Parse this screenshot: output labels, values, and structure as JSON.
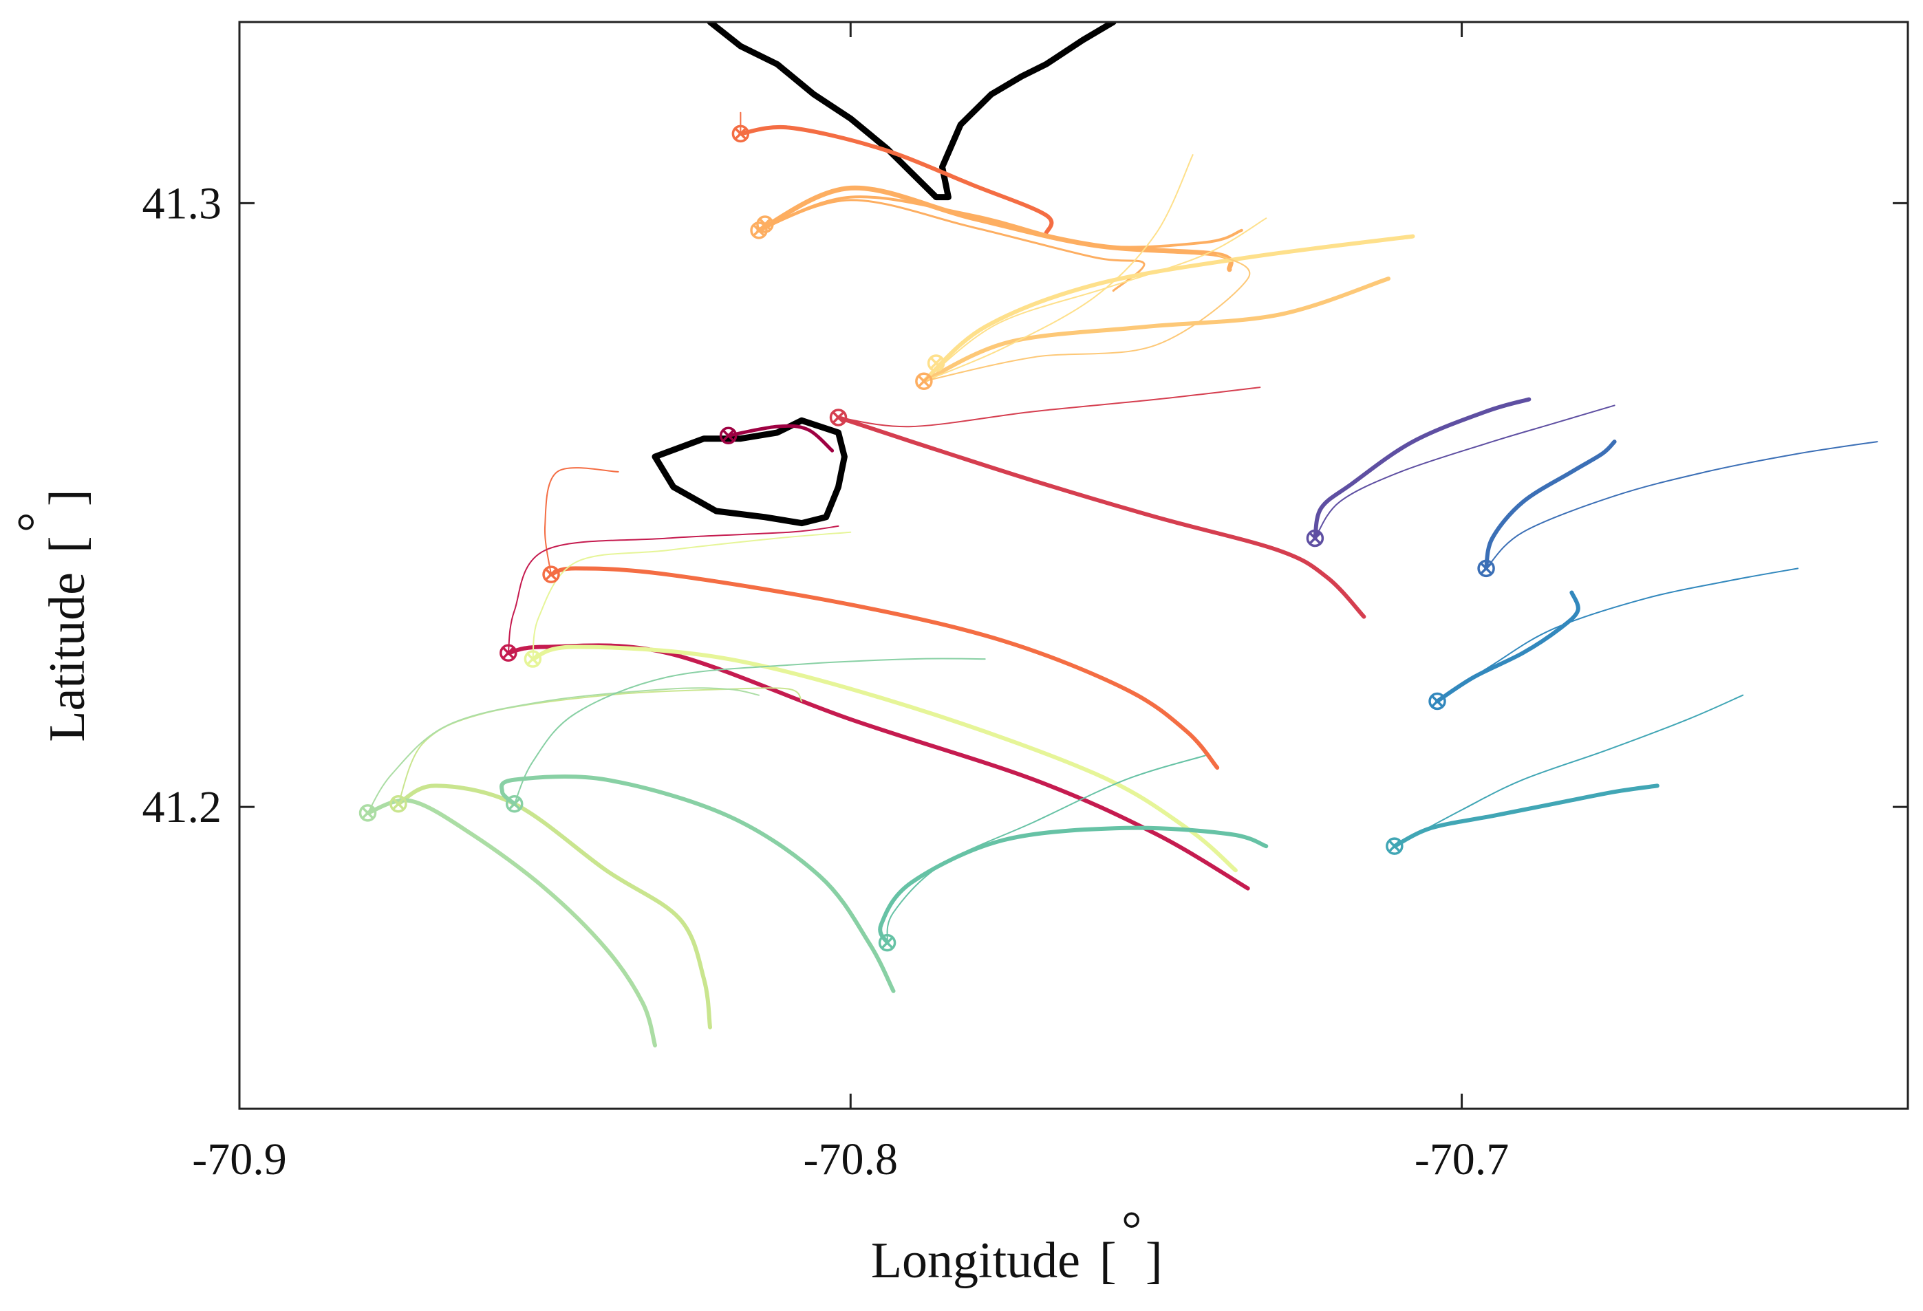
{
  "chart_data": {
    "type": "line",
    "title": "",
    "xlabel": "Longitude [ ]",
    "ylabel": "Latitude [ ]",
    "xlabel_text": "Longitude",
    "ylabel_text": "Latitude",
    "unit_symbol": "°",
    "xlim": [
      -70.9,
      -70.627
    ],
    "ylim": [
      41.15,
      41.33
    ],
    "x_ticks": [
      -70.9,
      -70.8,
      -70.7
    ],
    "x_tick_labels": [
      "-70.9",
      "-70.8",
      "-70.7"
    ],
    "y_ticks": [
      41.2,
      41.3
    ],
    "y_tick_labels": [
      "41.2",
      "41.3"
    ],
    "grid": false,
    "legend": "none",
    "start_marker": "circled-x",
    "coastlines": [
      {
        "name": "coastline-north",
        "color": "#000000",
        "x": [
          -70.823,
          -70.818,
          -70.812,
          -70.806,
          -70.8,
          -70.794,
          -70.79,
          -70.786,
          -70.784,
          -70.785,
          -70.782,
          -70.777,
          -70.772,
          -70.768,
          -70.762,
          -70.757
        ],
        "y": [
          41.33,
          41.326,
          41.323,
          41.318,
          41.314,
          41.309,
          41.305,
          41.301,
          41.301,
          41.306,
          41.313,
          41.318,
          41.321,
          41.323,
          41.327,
          41.33
        ]
      },
      {
        "name": "island",
        "color": "#000000",
        "x": [
          -70.832,
          -70.824,
          -70.818,
          -70.812,
          -70.808,
          -70.802,
          -70.801,
          -70.802,
          -70.804,
          -70.808,
          -70.814,
          -70.822,
          -70.829,
          -70.832
        ],
        "y": [
          41.258,
          41.261,
          41.261,
          41.262,
          41.264,
          41.262,
          41.258,
          41.253,
          41.248,
          41.247,
          41.248,
          41.249,
          41.253,
          41.258
        ]
      }
    ],
    "series": [
      {
        "color": "#F46D43",
        "lw": 6,
        "x": [
          -70.818,
          -70.81,
          -70.795,
          -70.78,
          -70.768,
          -70.768
        ],
        "y": [
          41.3115,
          41.3125,
          41.309,
          41.303,
          41.298,
          41.295
        ]
      },
      {
        "color": "#F46D43",
        "lw": 2,
        "x": [
          -70.818,
          -70.818
        ],
        "y": [
          41.3115,
          41.315
        ]
      },
      {
        "color": "#FDAE61",
        "lw": 7,
        "x": [
          -70.815,
          -70.8,
          -70.78,
          -70.76,
          -70.74,
          -70.738
        ],
        "y": [
          41.2955,
          41.3025,
          41.2975,
          41.293,
          41.2915,
          41.289
        ]
      },
      {
        "color": "#FDAE61",
        "lw": 4,
        "x": [
          -70.815,
          -70.8,
          -70.78,
          -70.76,
          -70.742,
          -70.736
        ],
        "y": [
          41.2955,
          41.301,
          41.298,
          41.293,
          41.2935,
          41.2955
        ]
      },
      {
        "color": "#FDAE61",
        "lw": 3,
        "x": [
          -70.815,
          -70.8,
          -70.78,
          -70.76,
          -70.752,
          -70.757
        ],
        "y": [
          41.2955,
          41.3005,
          41.296,
          41.291,
          41.29,
          41.2855
        ]
      },
      {
        "color": "#FEE08B",
        "lw": 6,
        "x": [
          -70.788,
          -70.778,
          -70.76,
          -70.735,
          -70.708
        ],
        "y": [
          41.2705,
          41.2795,
          41.2865,
          41.291,
          41.2945
        ]
      },
      {
        "color": "#FDC877",
        "lw": 6,
        "x": [
          -70.788,
          -70.774,
          -70.752,
          -70.73,
          -70.712
        ],
        "y": [
          41.2705,
          41.277,
          41.2795,
          41.2815,
          41.2875
        ]
      },
      {
        "color": "#FEE08B",
        "lw": 2,
        "x": [
          -70.788,
          -70.776,
          -70.758,
          -70.742,
          -70.732
        ],
        "y": [
          41.2705,
          41.28,
          41.286,
          41.2915,
          41.2975
        ]
      },
      {
        "color": "#FEE08B",
        "lw": 2,
        "x": [
          -70.788,
          -70.775,
          -70.76,
          -70.75,
          -70.744
        ],
        "y": [
          41.2705,
          41.276,
          41.2845,
          41.295,
          41.308
        ]
      },
      {
        "color": "#FDC877",
        "lw": 2,
        "x": [
          -70.788,
          -70.77,
          -70.75,
          -70.735,
          -70.74
        ],
        "y": [
          41.2705,
          41.2745,
          41.2765,
          41.2875,
          41.2915
        ]
      },
      {
        "color": "#D53E4F",
        "lw": 6,
        "x": [
          -70.802,
          -70.79,
          -70.77,
          -70.75,
          -70.73,
          -70.722,
          -70.716
        ],
        "y": [
          41.2645,
          41.2605,
          41.254,
          41.248,
          41.2425,
          41.238,
          41.2315
        ]
      },
      {
        "color": "#D53E4F",
        "lw": 2,
        "x": [
          -70.802,
          -70.79,
          -70.77,
          -70.75,
          -70.733
        ],
        "y": [
          41.2645,
          41.263,
          41.2655,
          41.2675,
          41.2695
        ]
      },
      {
        "color": "#9E0142",
        "lw": 5,
        "x": [
          -70.82,
          -70.812,
          -70.807,
          -70.803
        ],
        "y": [
          41.2615,
          41.263,
          41.2625,
          41.259
        ]
      },
      {
        "color": "#F46D43",
        "lw": 6,
        "x": [
          -70.849,
          -70.845,
          -70.83,
          -70.8,
          -70.775,
          -70.755,
          -70.745,
          -70.74
        ],
        "y": [
          41.2385,
          41.2395,
          41.2385,
          41.2335,
          41.2275,
          41.2195,
          41.2125,
          41.2065
        ]
      },
      {
        "color": "#F46D43",
        "lw": 2,
        "x": [
          -70.849,
          -70.85,
          -70.848,
          -70.838
        ],
        "y": [
          41.2385,
          41.2465,
          41.2555,
          41.2555
        ]
      },
      {
        "color": "#C51B4F",
        "lw": 6,
        "x": [
          -70.856,
          -70.85,
          -70.83,
          -70.8,
          -70.77,
          -70.75,
          -70.735
        ],
        "y": [
          41.2255,
          41.2265,
          41.2255,
          41.2145,
          41.2045,
          41.1955,
          41.1865
        ]
      },
      {
        "color": "#C51B4F",
        "lw": 2,
        "x": [
          -70.856,
          -70.855,
          -70.85,
          -70.83,
          -70.81,
          -70.802
        ],
        "y": [
          41.2255,
          41.2325,
          41.2425,
          41.2445,
          41.2455,
          41.2465
        ]
      },
      {
        "color": "#E6F598",
        "lw": 6,
        "x": [
          -70.852,
          -70.845,
          -70.82,
          -70.79,
          -70.76,
          -70.745,
          -70.737
        ],
        "y": [
          41.2245,
          41.2265,
          41.2245,
          41.2165,
          41.2055,
          41.1965,
          41.1895
        ]
      },
      {
        "color": "#E6F598",
        "lw": 2,
        "x": [
          -70.852,
          -70.851,
          -70.845,
          -70.83,
          -70.812,
          -70.8
        ],
        "y": [
          41.2245,
          41.2315,
          41.2405,
          41.2425,
          41.2445,
          41.2455
        ]
      },
      {
        "color": "#C9E58E",
        "lw": 6,
        "x": [
          -70.874,
          -70.868,
          -70.855,
          -70.84,
          -70.828,
          -70.824,
          -70.823
        ],
        "y": [
          41.2005,
          41.2035,
          41.2005,
          41.1895,
          41.1815,
          41.1715,
          41.1635
        ]
      },
      {
        "color": "#C9E58E",
        "lw": 2,
        "x": [
          -70.874,
          -70.87,
          -70.86,
          -70.84,
          -70.82,
          -70.81,
          -70.808
        ],
        "y": [
          41.2005,
          41.2105,
          41.2155,
          41.2185,
          41.2195,
          41.2195,
          41.2175
        ]
      },
      {
        "color": "#ABDDA4",
        "lw": 6,
        "x": [
          -70.879,
          -70.872,
          -70.862,
          -70.85,
          -70.84,
          -70.834,
          -70.832
        ],
        "y": [
          41.199,
          41.201,
          41.1955,
          41.1865,
          41.1765,
          41.1675,
          41.1605
        ]
      },
      {
        "color": "#ABDDA4",
        "lw": 2,
        "x": [
          -70.879,
          -70.875,
          -70.866,
          -70.85,
          -70.83,
          -70.82,
          -70.815
        ],
        "y": [
          41.199,
          41.2055,
          41.2135,
          41.2175,
          41.2195,
          41.2195,
          41.2185
        ]
      },
      {
        "color": "#88D0A4",
        "lw": 6,
        "x": [
          -70.855,
          -70.857,
          -70.855,
          -70.84,
          -70.82,
          -70.805,
          -70.797,
          -70.793
        ],
        "y": [
          41.2005,
          41.2025,
          41.2045,
          41.2045,
          41.1985,
          41.1885,
          41.1775,
          41.1695
        ]
      },
      {
        "color": "#88D0A4",
        "lw": 2,
        "x": [
          -70.855,
          -70.852,
          -70.845,
          -70.83,
          -70.81,
          -70.79,
          -70.778
        ],
        "y": [
          41.2005,
          41.2075,
          41.2155,
          41.2215,
          41.2235,
          41.2245,
          41.2245
        ]
      },
      {
        "color": "#66C2A5",
        "lw": 6,
        "x": [
          -70.794,
          -70.795,
          -70.79,
          -70.775,
          -70.755,
          -70.738,
          -70.732
        ],
        "y": [
          41.1775,
          41.1805,
          41.1875,
          41.1945,
          41.1965,
          41.1955,
          41.1935
        ]
      },
      {
        "color": "#66C2A5",
        "lw": 2,
        "x": [
          -70.794,
          -70.793,
          -70.785,
          -70.77,
          -70.755,
          -70.742
        ],
        "y": [
          41.1775,
          41.1825,
          41.1905,
          41.1975,
          41.2045,
          41.2085
        ]
      },
      {
        "color": "#5E4FA2",
        "lw": 6,
        "x": [
          -70.724,
          -70.723,
          -70.718,
          -70.708,
          -70.696,
          -70.689
        ],
        "y": [
          41.2445,
          41.2495,
          41.2535,
          41.2605,
          41.2655,
          41.2675
        ]
      },
      {
        "color": "#5E4FA2",
        "lw": 2,
        "x": [
          -70.724,
          -70.72,
          -70.71,
          -70.695,
          -70.685,
          -70.675
        ],
        "y": [
          41.2445,
          41.2505,
          41.2555,
          41.2605,
          41.2635,
          41.2665
        ]
      },
      {
        "color": "#3B6FB6",
        "lw": 6,
        "x": [
          -70.696,
          -70.695,
          -70.69,
          -70.682,
          -70.677,
          -70.675
        ],
        "y": [
          41.2395,
          41.2445,
          41.2505,
          41.2555,
          41.2585,
          41.2605
        ]
      },
      {
        "color": "#3B6FB6",
        "lw": 2,
        "x": [
          -70.696,
          -70.69,
          -70.675,
          -70.66,
          -70.645,
          -70.632
        ],
        "y": [
          41.2395,
          41.2455,
          41.2515,
          41.2555,
          41.2585,
          41.2605
        ]
      },
      {
        "color": "#3288BD",
        "lw": 6,
        "x": [
          -70.704,
          -70.698,
          -70.69,
          -70.684,
          -70.681,
          -70.682
        ],
        "y": [
          41.2175,
          41.2215,
          41.2255,
          41.2295,
          41.2325,
          41.2355
        ]
      },
      {
        "color": "#3288BD",
        "lw": 2,
        "x": [
          -70.704,
          -70.695,
          -70.685,
          -70.67,
          -70.656,
          -70.645
        ],
        "y": [
          41.2175,
          41.2235,
          41.2295,
          41.2345,
          41.2375,
          41.2395
        ]
      },
      {
        "color": "#41A6B5",
        "lw": 6,
        "x": [
          -70.711,
          -70.705,
          -70.695,
          -70.685,
          -70.675,
          -70.668
        ],
        "y": [
          41.1935,
          41.1965,
          41.1985,
          41.2005,
          41.2025,
          41.2035
        ]
      },
      {
        "color": "#41A6B5",
        "lw": 2,
        "x": [
          -70.711,
          -70.7,
          -70.69,
          -70.676,
          -70.663,
          -70.654
        ],
        "y": [
          41.1935,
          41.1995,
          41.2045,
          41.2095,
          41.2145,
          41.2185
        ]
      }
    ],
    "start_points": [
      {
        "x": -70.818,
        "y": 41.3115,
        "color": "#F46D43"
      },
      {
        "x": -70.815,
        "y": 41.2955,
        "color": "#FDAE61"
      },
      {
        "x": -70.814,
        "y": 41.2965,
        "color": "#FDAE61"
      },
      {
        "x": -70.788,
        "y": 41.2705,
        "color": "#FDAE61"
      },
      {
        "x": -70.786,
        "y": 41.2735,
        "color": "#FEE08B"
      },
      {
        "x": -70.802,
        "y": 41.2645,
        "color": "#D53E4F"
      },
      {
        "x": -70.82,
        "y": 41.2615,
        "color": "#9E0142"
      },
      {
        "x": -70.849,
        "y": 41.2385,
        "color": "#F46D43"
      },
      {
        "x": -70.856,
        "y": 41.2255,
        "color": "#C51B4F"
      },
      {
        "x": -70.852,
        "y": 41.2245,
        "color": "#E6F598"
      },
      {
        "x": -70.874,
        "y": 41.2005,
        "color": "#C9E58E"
      },
      {
        "x": -70.879,
        "y": 41.199,
        "color": "#ABDDA4"
      },
      {
        "x": -70.855,
        "y": 41.2005,
        "color": "#88D0A4"
      },
      {
        "x": -70.794,
        "y": 41.1775,
        "color": "#66C2A5"
      },
      {
        "x": -70.724,
        "y": 41.2445,
        "color": "#5E4FA2"
      },
      {
        "x": -70.696,
        "y": 41.2395,
        "color": "#3B6FB6"
      },
      {
        "x": -70.704,
        "y": 41.2175,
        "color": "#3288BD"
      },
      {
        "x": -70.711,
        "y": 41.1935,
        "color": "#41A6B5"
      }
    ]
  }
}
